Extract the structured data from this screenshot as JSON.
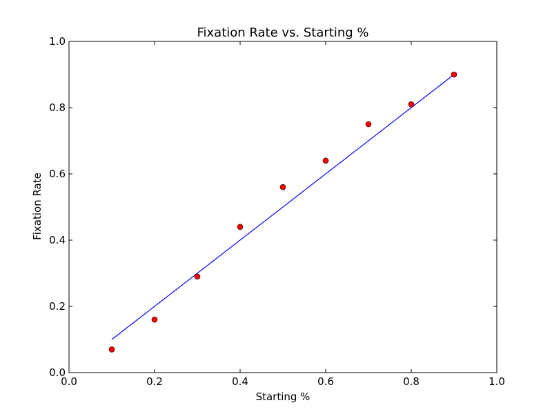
{
  "chart_data": {
    "type": "scatter",
    "title": "Fixation Rate vs. Starting %",
    "xlabel": "Starting %",
    "ylabel": "Fixation Rate",
    "xlim": [
      0.0,
      1.0
    ],
    "ylim": [
      0.0,
      1.0
    ],
    "x_ticks": [
      "0.0",
      "0.2",
      "0.4",
      "0.6",
      "0.8",
      "1.0"
    ],
    "y_ticks": [
      "0.0",
      "0.2",
      "0.4",
      "0.6",
      "0.8",
      "1.0"
    ],
    "grid": false,
    "series": [
      {
        "type": "scatter",
        "color": "#ff0000",
        "x": [
          0.1,
          0.2,
          0.3,
          0.4,
          0.5,
          0.6,
          0.7,
          0.8,
          0.9
        ],
        "y": [
          0.07,
          0.16,
          0.29,
          0.44,
          0.56,
          0.64,
          0.75,
          0.81,
          0.9
        ]
      },
      {
        "type": "line",
        "color": "#0000ff",
        "x": [
          0.1,
          0.9
        ],
        "y": [
          0.1,
          0.9
        ]
      }
    ]
  }
}
